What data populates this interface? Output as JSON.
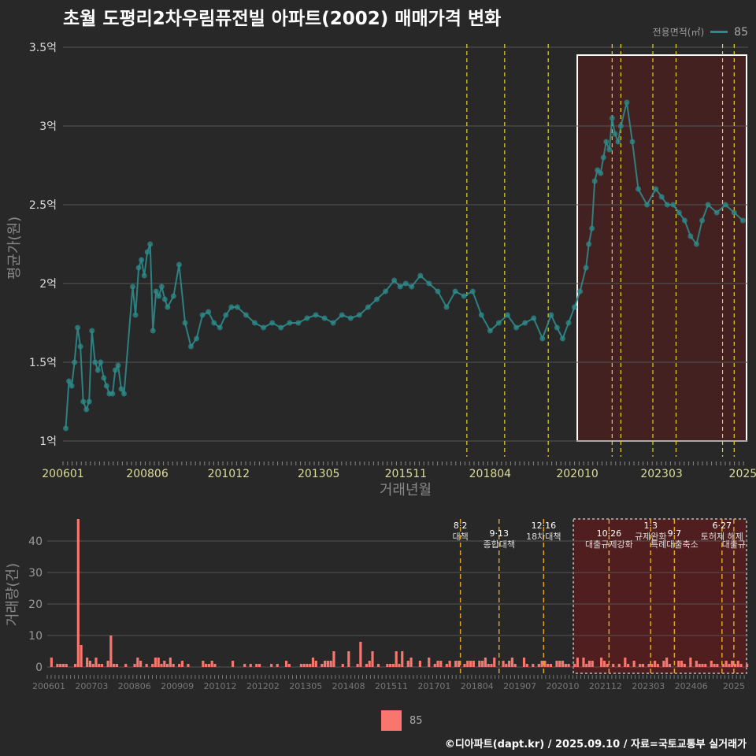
{
  "title": "초월 도평리2차우림퓨전빌 아파트(2002) 매매가격 변화",
  "legend": {
    "label": "전용면적(㎡)",
    "value": "85",
    "line_color": "#2e8b8b",
    "bar_color": "#f8766d"
  },
  "footer": "©디아파트(dapt.kr) / 2025.09.10 / 자료=국토교통부 실거래가",
  "chart_data": [
    {
      "type": "line",
      "ylabel": "평균가(원)",
      "xlabel": "거래년월",
      "ylim": [
        0.9,
        3.55
      ],
      "yticks": [
        1,
        1.5,
        2,
        2.5,
        3,
        3.5
      ],
      "yticklabels": [
        "1억",
        "1.5억",
        "2억",
        "2.5억",
        "3억",
        "3.5억"
      ],
      "xlim": [
        2006.0,
        2025.65
      ],
      "xticks": [
        2006.0,
        2008.417,
        2010.75,
        2013.333,
        2015.833,
        2018.25,
        2020.75,
        2023.167,
        2025.5
      ],
      "xticklabels": [
        "200601",
        "200806",
        "201012",
        "201305",
        "201511",
        "201804",
        "202010",
        "202303",
        "2025"
      ],
      "policy_lines": [
        2017.583,
        2018.667,
        2019.917,
        2021.75,
        2022.0,
        2022.917,
        2023.583,
        2024.917,
        2025.25
      ],
      "highlight_range": [
        2020.75,
        2025.65
      ],
      "highlight_ylim": [
        1.0,
        3.45
      ],
      "series": [
        {
          "name": "85",
          "x": [
            2006.08,
            2006.17,
            2006.25,
            2006.33,
            2006.42,
            2006.5,
            2006.58,
            2006.67,
            2006.75,
            2006.83,
            2006.92,
            2007.0,
            2007.08,
            2007.17,
            2007.25,
            2007.33,
            2007.42,
            2007.5,
            2007.58,
            2007.67,
            2007.75,
            2008.0,
            2008.08,
            2008.17,
            2008.25,
            2008.33,
            2008.42,
            2008.5,
            2008.58,
            2008.67,
            2008.75,
            2008.83,
            2008.92,
            2009.0,
            2009.17,
            2009.33,
            2009.5,
            2009.67,
            2009.83,
            2010.0,
            2010.17,
            2010.33,
            2010.5,
            2010.67,
            2010.83,
            2011.0,
            2011.25,
            2011.5,
            2011.75,
            2012.0,
            2012.25,
            2012.5,
            2012.75,
            2013.0,
            2013.25,
            2013.5,
            2013.75,
            2014.0,
            2014.25,
            2014.5,
            2014.75,
            2015.0,
            2015.25,
            2015.5,
            2015.67,
            2015.83,
            2016.0,
            2016.25,
            2016.5,
            2016.75,
            2017.0,
            2017.25,
            2017.5,
            2017.75,
            2018.0,
            2018.25,
            2018.5,
            2018.75,
            2019.0,
            2019.25,
            2019.5,
            2019.75,
            2020.0,
            2020.17,
            2020.33,
            2020.5,
            2020.67,
            2020.83,
            2021.0,
            2021.08,
            2021.17,
            2021.25,
            2021.33,
            2021.42,
            2021.5,
            2021.58,
            2021.67,
            2021.75,
            2021.83,
            2021.92,
            2022.0,
            2022.17,
            2022.33,
            2022.5,
            2022.75,
            2023.0,
            2023.17,
            2023.33,
            2023.5,
            2023.67,
            2023.83,
            2024.0,
            2024.17,
            2024.33,
            2024.5,
            2024.75,
            2025.0,
            2025.25,
            2025.5
          ],
          "y": [
            1.08,
            1.38,
            1.35,
            1.5,
            1.72,
            1.6,
            1.25,
            1.2,
            1.25,
            1.7,
            1.5,
            1.45,
            1.5,
            1.4,
            1.35,
            1.3,
            1.3,
            1.45,
            1.48,
            1.33,
            1.3,
            1.98,
            1.8,
            2.1,
            2.15,
            2.05,
            2.2,
            2.25,
            1.7,
            1.95,
            1.92,
            1.98,
            1.9,
            1.85,
            1.92,
            2.12,
            1.75,
            1.6,
            1.65,
            1.8,
            1.82,
            1.75,
            1.72,
            1.8,
            1.85,
            1.85,
            1.8,
            1.75,
            1.72,
            1.75,
            1.72,
            1.75,
            1.75,
            1.78,
            1.8,
            1.78,
            1.75,
            1.8,
            1.78,
            1.8,
            1.85,
            1.9,
            1.95,
            2.02,
            1.98,
            2.0,
            1.98,
            2.05,
            2.0,
            1.95,
            1.85,
            1.95,
            1.92,
            1.95,
            1.8,
            1.7,
            1.75,
            1.8,
            1.72,
            1.75,
            1.78,
            1.65,
            1.8,
            1.72,
            1.65,
            1.75,
            1.85,
            1.95,
            2.1,
            2.25,
            2.35,
            2.65,
            2.72,
            2.7,
            2.8,
            2.9,
            2.85,
            3.05,
            2.95,
            2.9,
            3.0,
            3.15,
            2.9,
            2.6,
            2.5,
            2.6,
            2.55,
            2.5,
            2.5,
            2.45,
            2.4,
            2.3,
            2.25,
            2.4,
            2.5,
            2.45,
            2.5,
            2.45,
            2.4
          ]
        }
      ]
    },
    {
      "type": "bar",
      "ylabel": "거래량(건)",
      "ylim": [
        -2,
        48
      ],
      "yticks": [
        0,
        10,
        20,
        30,
        40
      ],
      "xticklabels": [
        "200601",
        "200703",
        "200806",
        "200909",
        "201012",
        "201202",
        "201305",
        "201408",
        "201511",
        "201701",
        "201804",
        "201907",
        "202010",
        "202112",
        "202303",
        "202406",
        "2025"
      ],
      "spikes": [
        {
          "x": 2006.83,
          "value": 47
        },
        {
          "x": 2006.92,
          "value": 7
        },
        {
          "x": 2007.75,
          "value": 10
        },
        {
          "x": 2014.75,
          "value": 8
        }
      ],
      "policies": [
        {
          "x": 2017.583,
          "date": "8·2",
          "label": "대책"
        },
        {
          "x": 2018.667,
          "date": "9·13",
          "label": "종합대책"
        },
        {
          "x": 2019.917,
          "date": "12·16",
          "label": "18차대책"
        },
        {
          "x": 2021.75,
          "date": "10·26",
          "label": "대출규제강화"
        },
        {
          "x": 2022.917,
          "date": "1·3",
          "label": "규제완화"
        },
        {
          "x": 2023.583,
          "date": "9·7",
          "label": "특례대출축소"
        },
        {
          "x": 2024.917,
          "date": "6·27",
          "label": "토허제 해제"
        },
        {
          "x": 2025.25,
          "date": "",
          "label": "대출규"
        }
      ]
    }
  ]
}
